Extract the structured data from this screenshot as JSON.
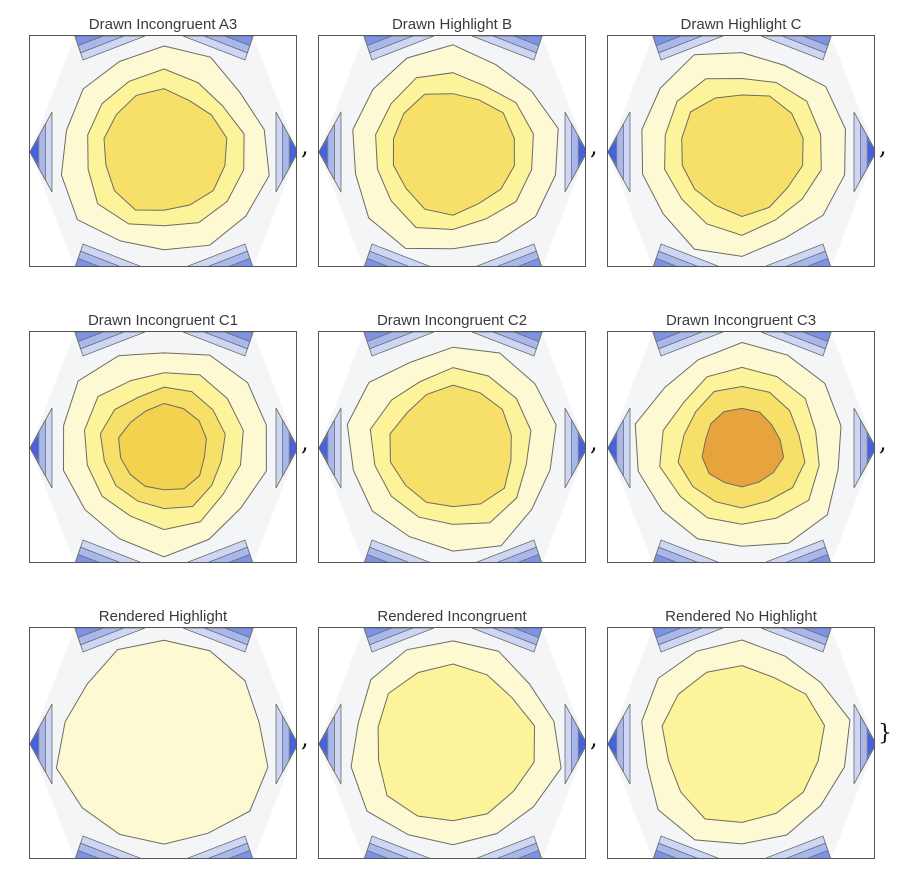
{
  "chart_data": {
    "type": "contour",
    "panels": [
      {
        "title": "Drawn Incongruent A3",
        "levels": [
          "y1",
          "y2",
          "y3"
        ],
        "separator": ","
      },
      {
        "title": "Drawn Highlight B",
        "levels": [
          "y1",
          "y2",
          "y3"
        ],
        "separator": ","
      },
      {
        "title": "Drawn Highlight C",
        "levels": [
          "y1",
          "y2",
          "y3"
        ],
        "separator": ","
      },
      {
        "title": "Drawn Incongruent C1",
        "levels": [
          "y1",
          "y2",
          "y3",
          "o1"
        ],
        "separator": ","
      },
      {
        "title": "Drawn Incongruent C2",
        "levels": [
          "y1",
          "y2",
          "y3"
        ],
        "separator": ","
      },
      {
        "title": "Drawn Incongruent C3",
        "levels": [
          "y1",
          "y2",
          "y3",
          "o2"
        ],
        "separator": ","
      },
      {
        "title": "Rendered Highlight",
        "levels": [
          "y1"
        ],
        "separator": ","
      },
      {
        "title": "Rendered Incongruent",
        "levels": [
          "y1",
          "y2"
        ],
        "separator": ","
      },
      {
        "title": "Rendered No Highlight",
        "levels": [
          "y1",
          "y2"
        ],
        "separator": "}"
      }
    ],
    "colors": {
      "bg": "#f4f5f7",
      "blue1": "#cdd6f5",
      "blue2": "#a8b8ef",
      "blue3": "#7b93e6",
      "blue4": "#4661d9",
      "y1": "#fdf9d3",
      "y2": "#fdf39a",
      "y3": "#f6e06a",
      "o1": "#f2d24e",
      "o2": "#e7a33c",
      "stroke": "#6c6c64"
    }
  }
}
